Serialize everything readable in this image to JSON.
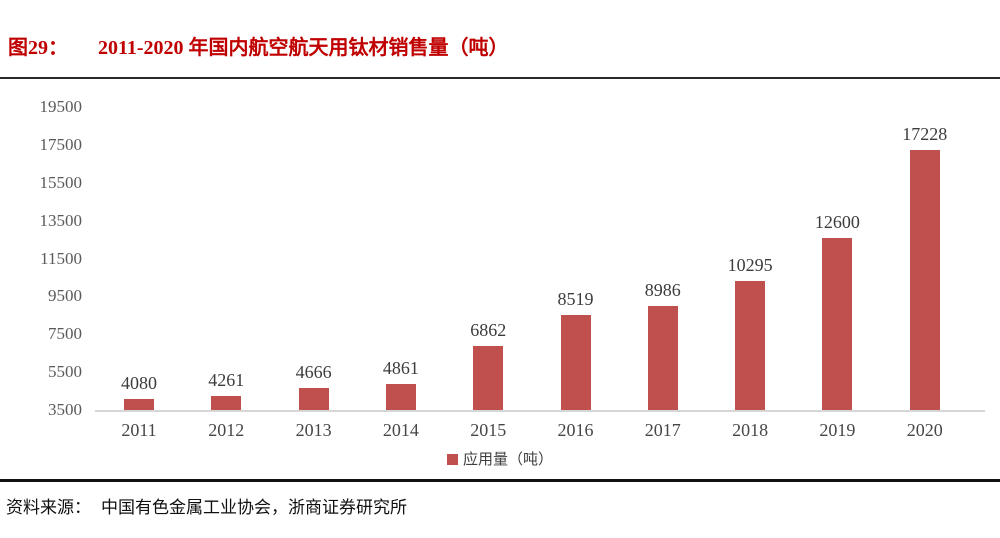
{
  "figure": {
    "label": "图29：",
    "title": "2011-2020 年国内航空航天用钛材销售量（吨）"
  },
  "legend": {
    "label": "应用量（吨）"
  },
  "source": {
    "prefix": "资料来源：",
    "text": "中国有色金属工业协会，浙商证券研究所"
  },
  "colors": {
    "bar": "#c0504d",
    "title": "#c00000",
    "legend_marker": "#c0504d"
  },
  "chart_data": {
    "type": "bar",
    "title": "2011-2020 年国内航空航天用钛材销售量（吨）",
    "categories": [
      "2011",
      "2012",
      "2013",
      "2014",
      "2015",
      "2016",
      "2017",
      "2018",
      "2019",
      "2020"
    ],
    "series": [
      {
        "name": "应用量（吨）",
        "values": [
          4080,
          4261,
          4666,
          4861,
          6862,
          8519,
          8986,
          10295,
          12600,
          17228
        ]
      }
    ],
    "xlabel": "",
    "ylabel": "",
    "ylim": [
      3500,
      19500
    ],
    "yticks": [
      3500,
      5500,
      7500,
      9500,
      11500,
      13500,
      15500,
      17500,
      19500
    ],
    "grid": false,
    "data_labels": true,
    "legend_position": "bottom"
  }
}
